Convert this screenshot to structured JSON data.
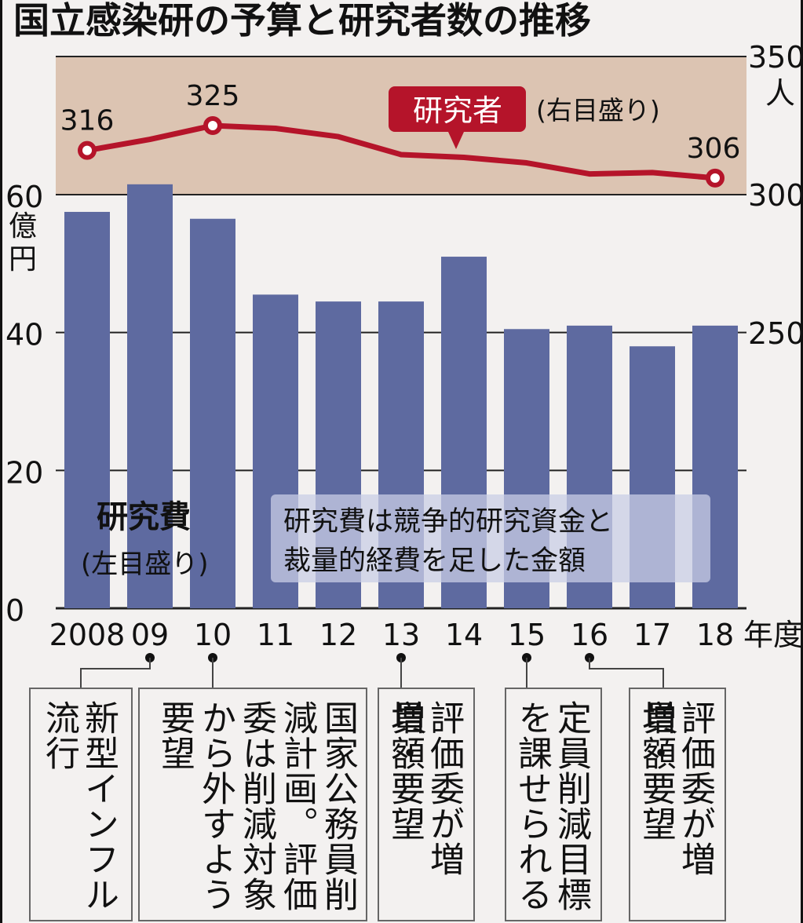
{
  "chart_data": {
    "type": "bar",
    "title": "国立感染研の予算と研究者数の推移",
    "categories": [
      "2008",
      "09",
      "10",
      "11",
      "12",
      "13",
      "14",
      "15",
      "16",
      "17",
      "18"
    ],
    "x_unit": "年度",
    "series": [
      {
        "name": "研究費",
        "axis": "left",
        "label": "(左目盛り)",
        "values": [
          57.5,
          61.5,
          56.5,
          45.5,
          44.5,
          44.5,
          51,
          40.5,
          41,
          38,
          41
        ]
      },
      {
        "name": "研究者",
        "axis": "right",
        "label": "(右目盛り)",
        "type": "line",
        "values": [
          316,
          320,
          325,
          324,
          321,
          314.5,
          313.5,
          311.5,
          307.5,
          308,
          306
        ]
      }
    ],
    "left_axis": {
      "unit": "億円",
      "range": [
        0,
        60
      ],
      "ticks": [
        "0",
        "20",
        "40",
        "60"
      ]
    },
    "right_axis": {
      "unit": "人",
      "range": [
        250,
        350
      ],
      "ticks": [
        "250",
        "300",
        "350"
      ]
    },
    "point_labels": [
      {
        "index": 0,
        "text": "316"
      },
      {
        "index": 2,
        "text": "325"
      },
      {
        "index": 10,
        "text": "306"
      }
    ],
    "note": [
      "研究費は競争的研究資金と",
      "裁量的経費を足した金額"
    ],
    "colors": {
      "bar": "#5e6aa0",
      "line": "#b5142a",
      "band": "#dcc4b2",
      "background": "#f3f1f0"
    }
  },
  "annotations": [
    {
      "marker_index": 1,
      "columns": [
        "新型インフル",
        "流行"
      ]
    },
    {
      "marker_index": 2,
      "columns": [
        "国家公務員削",
        "減計画。評価",
        "委は削減対象",
        "から外すよう",
        "要望"
      ]
    },
    {
      "marker_index": 5,
      "columns": [
        "評価委が増員・",
        "増額要望"
      ]
    },
    {
      "marker_index": 7,
      "columns": [
        "定員削減目標",
        "を課せられる"
      ]
    },
    {
      "marker_index": 8,
      "columns": [
        "評価委が増員・",
        "増額要望"
      ]
    }
  ]
}
